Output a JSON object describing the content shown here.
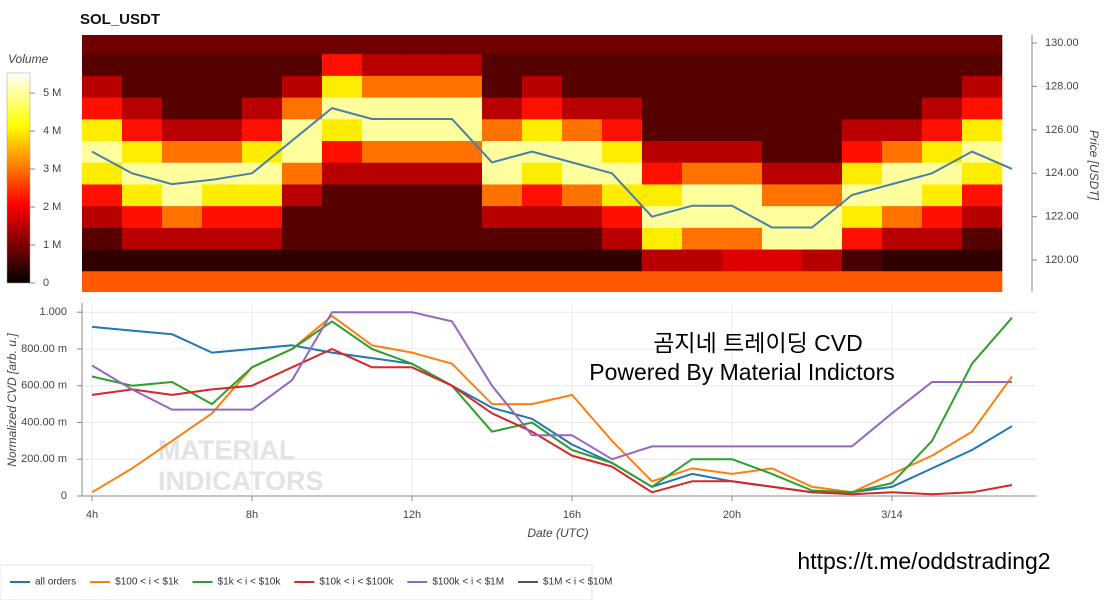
{
  "chart_data": [
    {
      "type": "heatmap",
      "title": "SOL_USDT",
      "ylabel": "Price [USDT]",
      "colorbar_label": "Volume",
      "xlim": [
        3.75,
        27.6
      ],
      "ylim": [
        118.53,
        130.37
      ],
      "yticks": [
        {
          "value": 120,
          "label": "120.00"
        },
        {
          "value": 122,
          "label": "122.00"
        },
        {
          "value": 124,
          "label": "124.00"
        },
        {
          "value": 126,
          "label": "126.00"
        },
        {
          "value": 128,
          "label": "128.00"
        },
        {
          "value": 130,
          "label": "130.00"
        }
      ],
      "x_edges": [
        3.75,
        4.75,
        5.75,
        6.75,
        7.75,
        8.75,
        9.75,
        10.75,
        11.75,
        12.75,
        13.75,
        14.75,
        15.75,
        16.75,
        17.75,
        18.75,
        19.75,
        20.75,
        21.75,
        22.75,
        23.75,
        24.75,
        25.75,
        26.75
      ],
      "y_edges": [
        118.5,
        119.5,
        120.5,
        121.5,
        122.5,
        123.5,
        124.5,
        125.5,
        126.5,
        127.5,
        128.5,
        129.5,
        130.5
      ],
      "z": [
        [
          2.8,
          2.8,
          2.8,
          2.8,
          2.8,
          2.8,
          2.8,
          2.8,
          2.8,
          2.8,
          2.8,
          2.8,
          2.8,
          2.8,
          2.8,
          2.8,
          2.8,
          2.8,
          2.8,
          2.8,
          2.8,
          2.8,
          2.8
        ],
        [
          0.4,
          0.4,
          0.4,
          0.4,
          0.4,
          0.4,
          0.4,
          0.4,
          0.4,
          0.4,
          0.4,
          0.4,
          0.4,
          0.4,
          1.5,
          1.5,
          1.8,
          1.8,
          1.5,
          0.6,
          0.4,
          0.4,
          0.4
        ],
        [
          0.7,
          1.5,
          1.5,
          1.5,
          1.5,
          0.7,
          0.7,
          0.7,
          0.7,
          0.7,
          0.7,
          0.7,
          0.7,
          1.5,
          4,
          3,
          3,
          5,
          5,
          2.2,
          1.5,
          1.5,
          0.7
        ],
        [
          1.5,
          2.2,
          3,
          2.2,
          2.2,
          0.7,
          0.7,
          0.7,
          0.7,
          0.7,
          1.5,
          1.5,
          1.5,
          2.2,
          5,
          5,
          5,
          5,
          5,
          4,
          3,
          2.2,
          1.5
        ],
        [
          2.2,
          4,
          5,
          4,
          4,
          1.5,
          0.7,
          0.7,
          0.7,
          0.7,
          3,
          2.2,
          3,
          4,
          4,
          5,
          5,
          3,
          3,
          5,
          5,
          4,
          2.2
        ],
        [
          4,
          5,
          5,
          5,
          5,
          3,
          1.5,
          1.5,
          1.5,
          1.5,
          5,
          4,
          5,
          5,
          2.2,
          3,
          3,
          1.5,
          1.5,
          4,
          5,
          5,
          4
        ],
        [
          5,
          4,
          3,
          3,
          4,
          5,
          2.2,
          3,
          3,
          3,
          5,
          5,
          5,
          4,
          1.5,
          1.5,
          1.5,
          0.7,
          0.7,
          2.2,
          3,
          4,
          5
        ],
        [
          4,
          2.2,
          1.5,
          1.5,
          2.2,
          5,
          4,
          5,
          5,
          5,
          3,
          4,
          3,
          2.2,
          0.7,
          0.7,
          0.7,
          0.7,
          0.7,
          1.5,
          1.5,
          2.2,
          4
        ],
        [
          2.2,
          1.5,
          0.7,
          0.7,
          1.5,
          3,
          5,
          5,
          5,
          5,
          1.5,
          2.2,
          1.5,
          1.5,
          0.7,
          0.7,
          0.7,
          0.7,
          0.7,
          0.7,
          0.7,
          1.5,
          2.2
        ],
        [
          1.5,
          0.7,
          0.7,
          0.7,
          0.7,
          1.5,
          4,
          3,
          3,
          3,
          0.7,
          1.5,
          0.7,
          0.7,
          0.7,
          0.7,
          0.7,
          0.7,
          0.7,
          0.7,
          0.7,
          0.7,
          1.5
        ],
        [
          0.7,
          0.7,
          0.7,
          0.7,
          0.7,
          0.7,
          2.2,
          1.5,
          1.5,
          1.5,
          0.7,
          0.7,
          0.7,
          0.7,
          0.7,
          0.7,
          0.7,
          0.7,
          0.7,
          0.7,
          0.7,
          0.7,
          0.7
        ],
        [
          0.9,
          0.9,
          0.9,
          0.9,
          0.9,
          0.9,
          0.9,
          0.9,
          0.9,
          0.9,
          0.9,
          0.9,
          0.9,
          0.9,
          0.9,
          0.9,
          0.9,
          0.9,
          0.9,
          0.9,
          0.9,
          0.9,
          0.9
        ]
      ],
      "clim": [
        0,
        5.53
      ],
      "cticks": [
        0,
        {
          "value": 1,
          "label": "1 M"
        },
        {
          "value": 2,
          "label": "2 M"
        },
        {
          "value": 3,
          "label": "3 M"
        },
        {
          "value": 4,
          "label": "4 M"
        },
        {
          "value": 5,
          "label": "5 M"
        }
      ],
      "colormap": "hot",
      "line": {
        "color": "#4a7fa8",
        "x": [
          4,
          5,
          6,
          7,
          8,
          9,
          10,
          11,
          12,
          13,
          14,
          15,
          16,
          17,
          18,
          19,
          20,
          21,
          22,
          23,
          24,
          25,
          26,
          27
        ],
        "values": [
          125,
          124,
          123.5,
          123.7,
          124,
          125.5,
          127,
          126.5,
          126.5,
          126.5,
          124.5,
          125,
          124.5,
          124,
          122,
          122.5,
          122.5,
          121.5,
          121.5,
          123,
          123.5,
          124,
          125,
          124.2
        ]
      }
    },
    {
      "type": "line",
      "ylabel": "Normalized CVD [arb. u.]",
      "xlabel": "Date (UTC)",
      "xlim": [
        3.75,
        27.6
      ],
      "xticks": [
        {
          "value": 4,
          "label": "4h"
        },
        {
          "value": 8,
          "label": "8h"
        },
        {
          "value": 12,
          "label": "12h"
        },
        {
          "value": 16,
          "label": "16h"
        },
        {
          "value": 20,
          "label": "20h"
        },
        {
          "value": 24,
          "label": "3/14"
        }
      ],
      "ylim": [
        0,
        1.05
      ],
      "yticks": [
        0,
        {
          "value": 0.2,
          "label": "200.00 m"
        },
        {
          "value": 0.4,
          "label": "400.00 m"
        },
        {
          "value": 0.6,
          "label": "600.00 m"
        },
        {
          "value": 0.8,
          "label": "800.00 m"
        },
        {
          "value": 1,
          "label": "1.000"
        }
      ],
      "grid": true,
      "legend": "bottom-left",
      "x": [
        4,
        5,
        6,
        7,
        8,
        9,
        10,
        11,
        12,
        13,
        14,
        15,
        16,
        17,
        18,
        19,
        20,
        21,
        22,
        23,
        24,
        25,
        26,
        27
      ],
      "series": [
        {
          "name": "all orders",
          "color": "#1f77b4",
          "values": [
            0.92,
            0.9,
            0.88,
            0.78,
            0.8,
            0.82,
            0.78,
            0.75,
            0.72,
            0.6,
            0.48,
            0.42,
            0.28,
            0.18,
            0.05,
            0.12,
            0.08,
            0.05,
            0.02,
            0.02,
            0.05,
            0.15,
            0.25,
            0.38
          ]
        },
        {
          "name": "$100 < i < $1k",
          "color": "#ff7f0e",
          "values": [
            0.02,
            0.15,
            0.3,
            0.45,
            0.7,
            0.8,
            0.98,
            0.82,
            0.78,
            0.72,
            0.5,
            0.5,
            0.55,
            0.3,
            0.08,
            0.15,
            0.12,
            0.15,
            0.05,
            0.02,
            0.12,
            0.22,
            0.35,
            0.65
          ]
        },
        {
          "name": "$1k < i < $10k",
          "color": "#2ca02c",
          "values": [
            0.65,
            0.6,
            0.62,
            0.5,
            0.7,
            0.8,
            0.95,
            0.8,
            0.72,
            0.6,
            0.35,
            0.4,
            0.25,
            0.18,
            0.05,
            0.2,
            0.2,
            0.12,
            0.03,
            0.02,
            0.07,
            0.3,
            0.72,
            0.97
          ]
        },
        {
          "name": "$10k < i < $100k",
          "color": "#d62728",
          "values": [
            0.55,
            0.58,
            0.55,
            0.58,
            0.6,
            0.7,
            0.8,
            0.7,
            0.7,
            0.6,
            0.45,
            0.35,
            0.22,
            0.16,
            0.02,
            0.08,
            0.08,
            0.05,
            0.02,
            0.01,
            0.02,
            0.01,
            0.02,
            0.06
          ]
        },
        {
          "name": "$100k < i < $1M",
          "color": "#9467bd",
          "values": [
            0.71,
            0.58,
            0.47,
            0.47,
            0.47,
            0.63,
            1.0,
            1.0,
            1.0,
            0.95,
            0.6,
            0.33,
            0.33,
            0.2,
            0.27,
            0.27,
            0.27,
            0.27,
            0.27,
            0.27,
            0.45,
            0.62,
            0.62,
            0.62
          ]
        },
        {
          "name": "$1M < i < $10M",
          "color": "#555555",
          "values": [
            null,
            null,
            null,
            null,
            null,
            null,
            null,
            null,
            null,
            null,
            null,
            null,
            null,
            null,
            null,
            null,
            null,
            null,
            null,
            null,
            null,
            null,
            null,
            null
          ]
        }
      ],
      "annotations": [
        "곰지네 트레이딩 CVD",
        "Powered By Material Indictors",
        "https://t.me/oddstrading2"
      ],
      "watermark": [
        "MATERIAL",
        "INDICATORS"
      ]
    }
  ]
}
